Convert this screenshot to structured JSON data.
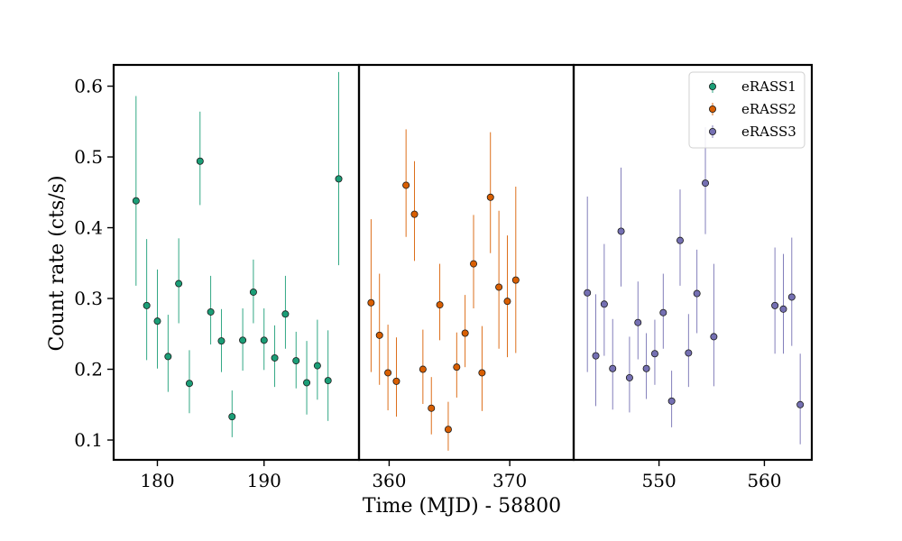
{
  "chart_data": {
    "type": "scatter",
    "title": "",
    "xlabel": "Time (MJD) - 58800",
    "ylabel": "Count rate (cts/s)",
    "ylim": [
      0.072,
      0.63
    ],
    "yticks": [
      0.1,
      0.2,
      0.3,
      0.4,
      0.5,
      0.6
    ],
    "ytick_labels": [
      "0.1",
      "0.2",
      "0.3",
      "0.4",
      "0.5",
      "0.6"
    ],
    "legend_position": "top-right",
    "grid": false,
    "panels": [
      {
        "xlim": [
          175.9,
          198.9
        ],
        "xticks": [
          180,
          190
        ],
        "xtick_labels": [
          "180",
          "190"
        ]
      },
      {
        "xlim": [
          357.5,
          375.3
        ],
        "xticks": [
          360,
          370
        ],
        "xtick_labels": [
          "360",
          "370"
        ]
      },
      {
        "xlim": [
          541.9,
          564.5
        ],
        "xticks": [
          550,
          560
        ],
        "xtick_labels": [
          "550",
          "560"
        ]
      }
    ],
    "series": [
      {
        "name": "eRASS1",
        "panel": 0,
        "color": "#1b9e77",
        "points": [
          {
            "x": 178.0,
            "y": 0.438,
            "lo": 0.318,
            "hi": 0.586
          },
          {
            "x": 179.0,
            "y": 0.29,
            "lo": 0.213,
            "hi": 0.384
          },
          {
            "x": 180.0,
            "y": 0.268,
            "lo": 0.201,
            "hi": 0.341
          },
          {
            "x": 181.0,
            "y": 0.218,
            "lo": 0.168,
            "hi": 0.277
          },
          {
            "x": 182.0,
            "y": 0.321,
            "lo": 0.265,
            "hi": 0.385
          },
          {
            "x": 183.0,
            "y": 0.18,
            "lo": 0.138,
            "hi": 0.227
          },
          {
            "x": 184.0,
            "y": 0.494,
            "lo": 0.432,
            "hi": 0.564
          },
          {
            "x": 185.0,
            "y": 0.281,
            "lo": 0.235,
            "hi": 0.332
          },
          {
            "x": 186.0,
            "y": 0.24,
            "lo": 0.196,
            "hi": 0.285
          },
          {
            "x": 187.0,
            "y": 0.133,
            "lo": 0.104,
            "hi": 0.17
          },
          {
            "x": 188.0,
            "y": 0.241,
            "lo": 0.198,
            "hi": 0.286
          },
          {
            "x": 189.0,
            "y": 0.309,
            "lo": 0.265,
            "hi": 0.355
          },
          {
            "x": 190.0,
            "y": 0.241,
            "lo": 0.199,
            "hi": 0.286
          },
          {
            "x": 191.0,
            "y": 0.216,
            "lo": 0.175,
            "hi": 0.262
          },
          {
            "x": 192.0,
            "y": 0.278,
            "lo": 0.229,
            "hi": 0.332
          },
          {
            "x": 193.0,
            "y": 0.212,
            "lo": 0.173,
            "hi": 0.253
          },
          {
            "x": 194.0,
            "y": 0.181,
            "lo": 0.136,
            "hi": 0.24
          },
          {
            "x": 195.0,
            "y": 0.205,
            "lo": 0.157,
            "hi": 0.27
          },
          {
            "x": 196.0,
            "y": 0.184,
            "lo": 0.127,
            "hi": 0.255
          },
          {
            "x": 197.0,
            "y": 0.469,
            "lo": 0.347,
            "hi": 0.62
          }
        ]
      },
      {
        "name": "eRASS2",
        "panel": 1,
        "color": "#d95f02",
        "points": [
          {
            "x": 358.5,
            "y": 0.294,
            "lo": 0.196,
            "hi": 0.412
          },
          {
            "x": 359.2,
            "y": 0.248,
            "lo": 0.178,
            "hi": 0.335
          },
          {
            "x": 359.9,
            "y": 0.195,
            "lo": 0.142,
            "hi": 0.263
          },
          {
            "x": 360.6,
            "y": 0.183,
            "lo": 0.133,
            "hi": 0.245
          },
          {
            "x": 361.4,
            "y": 0.46,
            "lo": 0.387,
            "hi": 0.539
          },
          {
            "x": 362.1,
            "y": 0.419,
            "lo": 0.353,
            "hi": 0.494
          },
          {
            "x": 362.8,
            "y": 0.2,
            "lo": 0.151,
            "hi": 0.256
          },
          {
            "x": 363.5,
            "y": 0.145,
            "lo": 0.108,
            "hi": 0.189
          },
          {
            "x": 364.2,
            "y": 0.291,
            "lo": 0.241,
            "hi": 0.349
          },
          {
            "x": 364.9,
            "y": 0.115,
            "lo": 0.085,
            "hi": 0.154
          },
          {
            "x": 365.6,
            "y": 0.203,
            "lo": 0.16,
            "hi": 0.252
          },
          {
            "x": 366.3,
            "y": 0.251,
            "lo": 0.203,
            "hi": 0.305
          },
          {
            "x": 367.0,
            "y": 0.349,
            "lo": 0.286,
            "hi": 0.418
          },
          {
            "x": 367.7,
            "y": 0.195,
            "lo": 0.141,
            "hi": 0.261
          },
          {
            "x": 368.4,
            "y": 0.443,
            "lo": 0.364,
            "hi": 0.535
          },
          {
            "x": 369.1,
            "y": 0.316,
            "lo": 0.229,
            "hi": 0.424
          },
          {
            "x": 369.8,
            "y": 0.296,
            "lo": 0.217,
            "hi": 0.389
          },
          {
            "x": 370.5,
            "y": 0.326,
            "lo": 0.223,
            "hi": 0.458
          }
        ]
      },
      {
        "name": "eRASS3",
        "panel": 2,
        "color": "#7570b3",
        "points": [
          {
            "x": 543.2,
            "y": 0.308,
            "lo": 0.196,
            "hi": 0.444
          },
          {
            "x": 544.0,
            "y": 0.219,
            "lo": 0.148,
            "hi": 0.306
          },
          {
            "x": 544.8,
            "y": 0.292,
            "lo": 0.219,
            "hi": 0.377
          },
          {
            "x": 545.6,
            "y": 0.201,
            "lo": 0.143,
            "hi": 0.271
          },
          {
            "x": 546.4,
            "y": 0.395,
            "lo": 0.317,
            "hi": 0.485
          },
          {
            "x": 547.2,
            "y": 0.188,
            "lo": 0.139,
            "hi": 0.246
          },
          {
            "x": 548.0,
            "y": 0.266,
            "lo": 0.214,
            "hi": 0.324
          },
          {
            "x": 548.8,
            "y": 0.201,
            "lo": 0.158,
            "hi": 0.251
          },
          {
            "x": 549.6,
            "y": 0.222,
            "lo": 0.178,
            "hi": 0.27
          },
          {
            "x": 550.4,
            "y": 0.28,
            "lo": 0.229,
            "hi": 0.335
          },
          {
            "x": 551.2,
            "y": 0.155,
            "lo": 0.118,
            "hi": 0.198
          },
          {
            "x": 552.0,
            "y": 0.382,
            "lo": 0.318,
            "hi": 0.454
          },
          {
            "x": 552.8,
            "y": 0.223,
            "lo": 0.175,
            "hi": 0.278
          },
          {
            "x": 553.6,
            "y": 0.307,
            "lo": 0.251,
            "hi": 0.369
          },
          {
            "x": 554.4,
            "y": 0.463,
            "lo": 0.391,
            "hi": 0.542
          },
          {
            "x": 555.2,
            "y": 0.246,
            "lo": 0.176,
            "hi": 0.349
          },
          {
            "x": 561.0,
            "y": 0.29,
            "lo": 0.222,
            "hi": 0.372
          },
          {
            "x": 561.8,
            "y": 0.285,
            "lo": 0.222,
            "hi": 0.363
          },
          {
            "x": 562.6,
            "y": 0.302,
            "lo": 0.233,
            "hi": 0.386
          },
          {
            "x": 563.4,
            "y": 0.15,
            "lo": 0.094,
            "hi": 0.222
          }
        ]
      }
    ]
  }
}
